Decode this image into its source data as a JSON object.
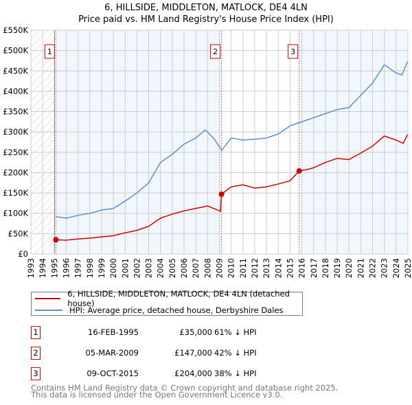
{
  "title_line1": "6, HILLSIDE, MIDDLETON, MATLOCK, DE4 4LN",
  "title_line2": "Price paid vs. HM Land Registry's House Price Index (HPI)",
  "chart_data": {
    "type": "line",
    "title": "6, HILLSIDE, MIDDLETON, MATLOCK, DE4 4LN - Price paid vs. HM Land Registry's House Price Index (HPI)",
    "xlim": [
      1993,
      2025
    ],
    "ylim": [
      0,
      550000
    ],
    "x_ticks": [
      "1993",
      "1994",
      "1995",
      "1996",
      "1997",
      "1998",
      "1999",
      "2000",
      "2001",
      "2002",
      "2003",
      "2004",
      "2005",
      "2006",
      "2007",
      "2008",
      "2009",
      "2010",
      "2011",
      "2012",
      "2013",
      "2014",
      "2015",
      "2016",
      "2017",
      "2018",
      "2019",
      "2020",
      "2021",
      "2022",
      "2023",
      "2024",
      "2025"
    ],
    "y_ticks": [
      {
        "v": 0,
        "label": "£0"
      },
      {
        "v": 50000,
        "label": "£50K"
      },
      {
        "v": 100000,
        "label": "£100K"
      },
      {
        "v": 150000,
        "label": "£150K"
      },
      {
        "v": 200000,
        "label": "£200K"
      },
      {
        "v": 250000,
        "label": "£250K"
      },
      {
        "v": 300000,
        "label": "£300K"
      },
      {
        "v": 350000,
        "label": "£350K"
      },
      {
        "v": 400000,
        "label": "£400K"
      },
      {
        "v": 450000,
        "label": "£450K"
      },
      {
        "v": 500000,
        "label": "£500K"
      },
      {
        "v": 550000,
        "label": "£550K"
      }
    ],
    "grid": true,
    "series": [
      {
        "name": "6, HILLSIDE, MIDDLETON, MATLOCK, DE4 4LN (detached house)",
        "color": "#cc0000",
        "x": [
          1995.12,
          1996,
          1997,
          1998,
          1999,
          2000,
          2001,
          2002,
          2003,
          2004,
          2005,
          2006,
          2007,
          2008,
          2009.1,
          2009.18,
          2010,
          2011,
          2012,
          2013,
          2014,
          2015,
          2015.77,
          2016.5,
          2017,
          2018,
          2019,
          2020,
          2021,
          2022,
          2023,
          2024,
          2024.6,
          2025
        ],
        "y": [
          35000,
          34000,
          37000,
          39000,
          42000,
          45000,
          52000,
          58000,
          68000,
          88000,
          98000,
          106000,
          112000,
          118000,
          105000,
          147000,
          165000,
          170000,
          162000,
          165000,
          172000,
          180000,
          204000,
          208000,
          212000,
          225000,
          235000,
          232000,
          248000,
          265000,
          290000,
          280000,
          272000,
          295000
        ]
      },
      {
        "name": "HPI: Average price, detached house, Derbyshire Dales",
        "color": "#5b8fd0",
        "x": [
          1995.12,
          1996,
          1997,
          1998,
          1999,
          2000,
          2001,
          2002,
          2003,
          2004,
          2005,
          2006,
          2007,
          2007.8,
          2008.5,
          2009.2,
          2010,
          2011,
          2012,
          2013,
          2014,
          2015,
          2016,
          2017,
          2018,
          2019,
          2020,
          2021,
          2022,
          2023,
          2024,
          2024.5,
          2025
        ],
        "y": [
          92000,
          88000,
          95000,
          100000,
          108000,
          112000,
          130000,
          150000,
          175000,
          225000,
          245000,
          270000,
          285000,
          305000,
          285000,
          255000,
          285000,
          280000,
          282000,
          285000,
          295000,
          315000,
          325000,
          335000,
          345000,
          355000,
          360000,
          390000,
          420000,
          465000,
          445000,
          440000,
          475000
        ]
      }
    ],
    "sales": [
      {
        "label": "1",
        "x": 1995.12,
        "y": 35000
      },
      {
        "label": "2",
        "x": 2009.18,
        "y": 147000
      },
      {
        "label": "3",
        "x": 2015.77,
        "y": 204000
      }
    ],
    "legend_position": "below"
  },
  "legend": [
    {
      "label": "6, HILLSIDE, MIDDLETON, MATLOCK, DE4 4LN (detached house)",
      "color": "#cc0000"
    },
    {
      "label": "HPI: Average price, detached house, Derbyshire Dales",
      "color": "#5b8fd0"
    }
  ],
  "transactions": [
    {
      "num": "1",
      "date": "16-FEB-1995",
      "price": "£35,000",
      "pct": "61% ↓ HPI"
    },
    {
      "num": "2",
      "date": "05-MAR-2009",
      "price": "£147,000",
      "pct": "42% ↓ HPI"
    },
    {
      "num": "3",
      "date": "09-OCT-2015",
      "price": "£204,000",
      "pct": "38% ↓ HPI"
    }
  ],
  "footer_line1": "Contains HM Land Registry data © Crown copyright and database right 2025.",
  "footer_line2": "This data is licensed under the Open Government Licence v3.0."
}
